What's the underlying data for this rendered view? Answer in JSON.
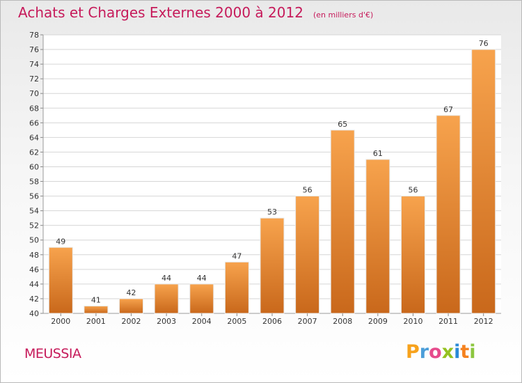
{
  "header": {
    "title": "Achats et Charges Externes 2000 à 2012",
    "unit": "(en milliers d'€)"
  },
  "footer": {
    "place": "MEUSSIA",
    "logo_text": "Proxiti"
  },
  "colors": {
    "accent": "#c61a5a",
    "bar_light": "#f7a34d",
    "bar_dark": "#c9681b",
    "grid": "#d6d6d6"
  },
  "chart_data": {
    "type": "bar",
    "categories": [
      "2000",
      "2001",
      "2002",
      "2003",
      "2004",
      "2005",
      "2006",
      "2007",
      "2008",
      "2009",
      "2010",
      "2011",
      "2012"
    ],
    "values": [
      49,
      41,
      42,
      44,
      44,
      47,
      53,
      56,
      65,
      61,
      56,
      67,
      76
    ],
    "ylim": [
      40,
      78
    ],
    "ytick_step": 2,
    "grid": true
  }
}
